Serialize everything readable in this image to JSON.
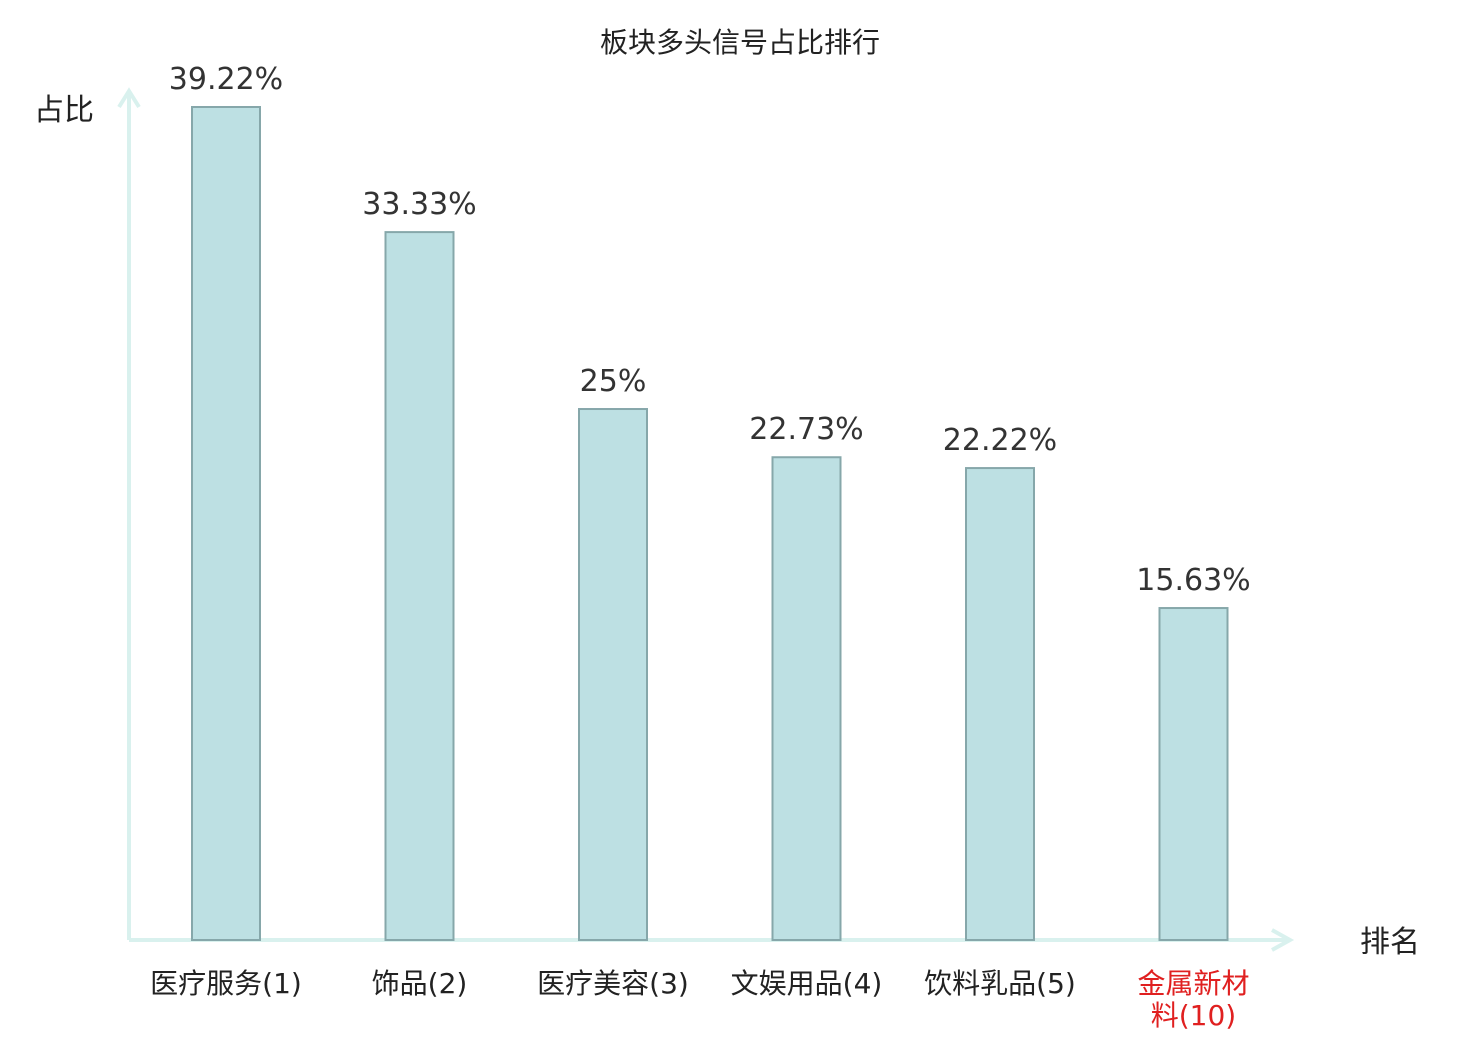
{
  "chart_data": {
    "type": "bar",
    "title": "板块多头信号占比排行",
    "ylabel": "占比",
    "xlabel": "排名",
    "categories": [
      [
        "医疗服务(1)"
      ],
      [
        "饰品(2)"
      ],
      [
        "医疗美容(3)"
      ],
      [
        "文娱用品(4)"
      ],
      [
        "饮料乳品(5)"
      ],
      [
        "金属新材",
        "料(10)"
      ]
    ],
    "values": [
      39.22,
      33.33,
      25,
      22.73,
      22.22,
      15.63
    ],
    "value_labels": [
      "39.22%",
      "33.33%",
      "25%",
      "22.73%",
      "22.22%",
      "15.63%"
    ],
    "highlight_index": 5,
    "ylim": [
      0,
      40
    ],
    "grid": false,
    "colors": {
      "bar_fill": "#bde0e3",
      "bar_stroke": "#86a7aa",
      "axis": "#d9f1ee",
      "highlight_label": "#e02020"
    }
  }
}
